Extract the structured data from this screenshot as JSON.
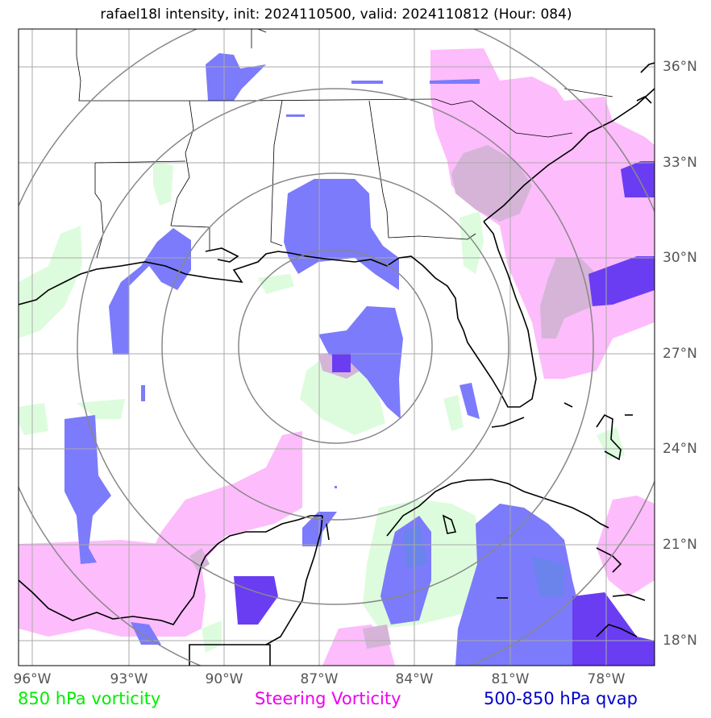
{
  "title": "rafael18l intensity, init: 2024110500, valid: 2024110812 (Hour: 084)",
  "lon_labels": [
    "96°W",
    "93°W",
    "90°W",
    "87°W",
    "84°W",
    "81°W",
    "78°W"
  ],
  "lat_labels": [
    "36°N",
    "33°N",
    "30°N",
    "27°N",
    "24°N",
    "21°N",
    "18°N"
  ],
  "legend": [
    {
      "label": "850 hPa vorticity",
      "color": "#00ee00"
    },
    {
      "label": "Steering Vorticity",
      "color": "#ee00ee"
    },
    {
      "label": "500-850 hPa qvap",
      "color": "#0000cc"
    }
  ],
  "colors": {
    "vorticity_fill": "#ddfcdd",
    "steering_fill": "#fdbcfb",
    "qvap_fill": "#7b7bfb",
    "qvap_dark": "#6a3df3",
    "overlap_fill": "#d6b4d8",
    "ring": "#888888",
    "grid": "#aaaaaa"
  }
}
